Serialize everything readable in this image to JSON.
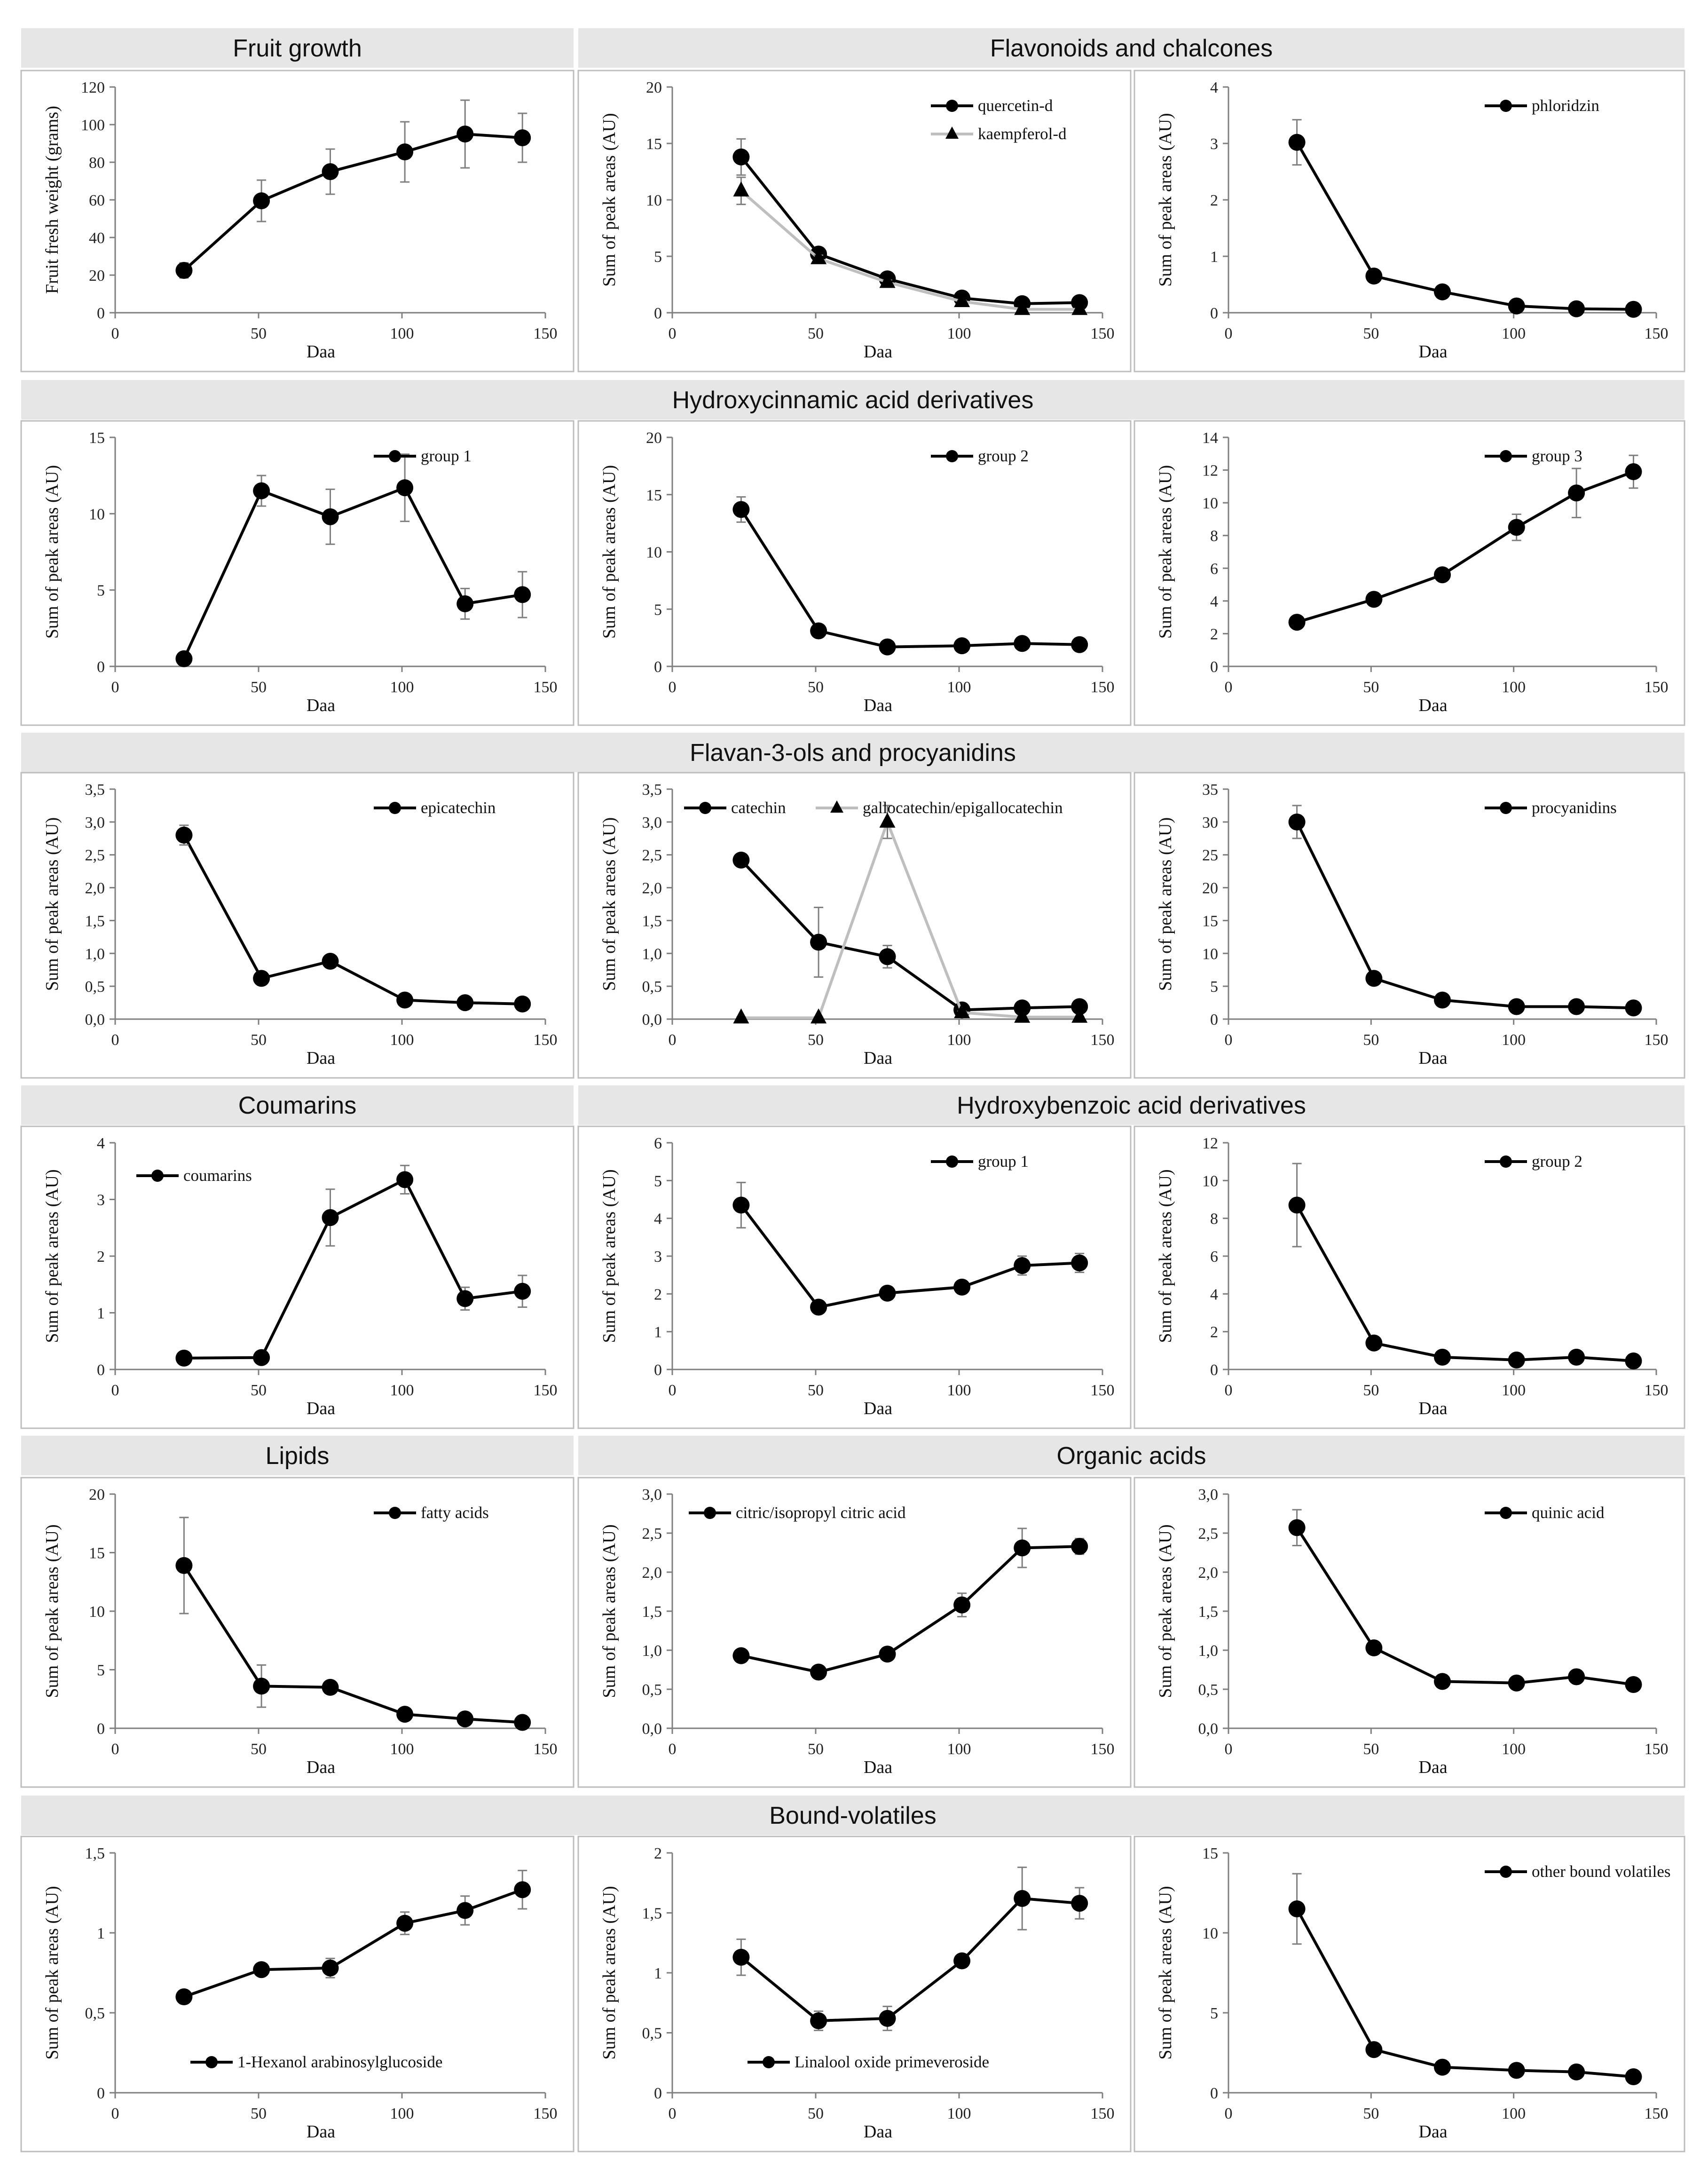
{
  "section_headers": [
    {
      "key": "fruit",
      "text": "Fruit growth"
    },
    {
      "key": "flav",
      "text": "Flavonoids and chalcones"
    },
    {
      "key": "hca",
      "text": "Hydroxycinnamic acid derivatives"
    },
    {
      "key": "flavan",
      "text": "Flavan-3-ols and procyanidins"
    },
    {
      "key": "coum",
      "text": "Coumarins"
    },
    {
      "key": "hba",
      "text": "Hydroxybenzoic acid derivatives"
    },
    {
      "key": "lip",
      "text": "Lipids"
    },
    {
      "key": "org",
      "text": "Organic acids"
    },
    {
      "key": "bound",
      "text": "Bound-volatiles"
    }
  ],
  "chart_data": [
    {
      "id": "fruit-growth",
      "type": "line",
      "xlabel": "Daa",
      "ylabel": "Fruit fresh weight (grams)",
      "xlim": [
        0,
        150
      ],
      "xticks": [
        "0",
        "50",
        "100",
        "150"
      ],
      "ylim": [
        0,
        120
      ],
      "yticks": [
        "0",
        "20",
        "40",
        "60",
        "80",
        "100",
        "120"
      ],
      "legend_position": "none",
      "series": [
        {
          "name": "",
          "marker": "circle",
          "color": "#000000",
          "x": [
            24,
            51,
            75,
            101,
            122,
            142
          ],
          "y": [
            22.5,
            59.5,
            75,
            85.5,
            95,
            93
          ],
          "err": [
            4,
            11,
            12,
            16,
            18,
            13
          ]
        }
      ]
    },
    {
      "id": "flavonoids-chalcones-1",
      "type": "line",
      "xlabel": "Daa",
      "ylabel": "Sum of peak areas (AU)",
      "xlim": [
        0,
        150
      ],
      "xticks": [
        "0",
        "50",
        "100",
        "150"
      ],
      "ylim": [
        0,
        20
      ],
      "yticks": [
        "0",
        "5",
        "10",
        "15",
        "20"
      ],
      "legend_position": "top-right",
      "series": [
        {
          "name": "quercetin-d",
          "marker": "circle",
          "color": "#000000",
          "x": [
            24,
            51,
            75,
            101,
            122,
            142
          ],
          "y": [
            13.8,
            5.2,
            3.0,
            1.3,
            0.8,
            0.9
          ],
          "err": [
            1.6,
            0.4,
            0.3,
            0.2,
            0.1,
            0.1
          ]
        },
        {
          "name": "kaempferol-d",
          "marker": "triangle",
          "color": "#bfbfbf",
          "x": [
            24,
            51,
            75,
            101,
            122,
            142
          ],
          "y": [
            10.8,
            4.8,
            2.7,
            1.0,
            0.3,
            0.3
          ],
          "err": [
            1.2,
            0.3,
            0.2,
            0.1,
            0.05,
            0.05
          ]
        }
      ]
    },
    {
      "id": "flavonoids-chalcones-2",
      "type": "line",
      "xlabel": "Daa",
      "ylabel": "Sum of peak areas (AU)",
      "xlim": [
        0,
        150
      ],
      "xticks": [
        "0",
        "50",
        "100",
        "150"
      ],
      "ylim": [
        0,
        4
      ],
      "yticks": [
        "0",
        "1",
        "2",
        "3",
        "4"
      ],
      "legend_position": "top-right",
      "series": [
        {
          "name": "phloridzin",
          "marker": "circle",
          "color": "#000000",
          "x": [
            24,
            51,
            75,
            101,
            122,
            142
          ],
          "y": [
            3.02,
            0.65,
            0.37,
            0.12,
            0.07,
            0.06
          ],
          "err": [
            0.4,
            0.05,
            0.04,
            0.02,
            0.01,
            0.01
          ]
        }
      ]
    },
    {
      "id": "hydroxycinnamic-group-1",
      "type": "line",
      "xlabel": "Daa",
      "ylabel": "Sum of peak areas (AU)",
      "xlim": [
        0,
        150
      ],
      "xticks": [
        "0",
        "50",
        "100",
        "150"
      ],
      "ylim": [
        0,
        15
      ],
      "yticks": [
        "0",
        "5",
        "10",
        "15"
      ],
      "legend_position": "top-right",
      "series": [
        {
          "name": "group 1",
          "marker": "circle",
          "color": "#000000",
          "x": [
            24,
            51,
            75,
            101,
            122,
            142
          ],
          "y": [
            0.5,
            11.5,
            9.8,
            11.7,
            4.1,
            4.7
          ],
          "err": [
            0.1,
            1.0,
            1.8,
            2.2,
            1.0,
            1.5
          ]
        }
      ]
    },
    {
      "id": "hydroxycinnamic-group-2",
      "type": "line",
      "xlabel": "Daa",
      "ylabel": "Sum of peak areas (AU)",
      "xlim": [
        0,
        150
      ],
      "xticks": [
        "0",
        "50",
        "100",
        "150"
      ],
      "ylim": [
        0,
        20
      ],
      "yticks": [
        "0",
        "5",
        "10",
        "15",
        "20"
      ],
      "legend_position": "top-right",
      "series": [
        {
          "name": "group 2",
          "marker": "circle",
          "color": "#000000",
          "x": [
            24,
            51,
            75,
            101,
            122,
            142
          ],
          "y": [
            13.7,
            3.1,
            1.7,
            1.8,
            2.0,
            1.9
          ],
          "err": [
            1.1,
            0.3,
            0.2,
            0.2,
            0.2,
            0.2
          ]
        }
      ]
    },
    {
      "id": "hydroxycinnamic-group-3",
      "type": "line",
      "xlabel": "Daa",
      "ylabel": "Sum of peak areas (AU)",
      "xlim": [
        0,
        150
      ],
      "xticks": [
        "0",
        "50",
        "100",
        "150"
      ],
      "ylim": [
        0,
        14
      ],
      "yticks": [
        "0",
        "2",
        "4",
        "6",
        "8",
        "10",
        "12",
        "14"
      ],
      "legend_position": "top-right",
      "series": [
        {
          "name": "group 3",
          "marker": "circle",
          "color": "#000000",
          "x": [
            24,
            51,
            75,
            101,
            122,
            142
          ],
          "y": [
            2.7,
            4.1,
            5.6,
            8.5,
            10.6,
            11.9
          ],
          "err": [
            0.1,
            0.3,
            0.3,
            0.8,
            1.5,
            1.0
          ]
        }
      ]
    },
    {
      "id": "flavan-epicatechin",
      "type": "line",
      "xlabel": "Daa",
      "ylabel": "Sum of peak areas (AU)",
      "xlim": [
        0,
        150
      ],
      "xticks": [
        "0",
        "50",
        "100",
        "150"
      ],
      "ylim": [
        0,
        3.5
      ],
      "yticks": [
        "0,0",
        "0,5",
        "1,0",
        "1,5",
        "2,0",
        "2,5",
        "3,0",
        "3,5"
      ],
      "legend_position": "top-right",
      "series": [
        {
          "name": "epicatechin",
          "marker": "circle",
          "color": "#000000",
          "x": [
            24,
            51,
            75,
            101,
            122,
            142
          ],
          "y": [
            2.8,
            0.62,
            0.88,
            0.29,
            0.25,
            0.23
          ],
          "err": [
            0.15,
            0.05,
            0.05,
            0.03,
            0.02,
            0.02
          ]
        }
      ]
    },
    {
      "id": "flavan-catechin",
      "type": "line",
      "xlabel": "Daa",
      "ylabel": "Sum of peak areas (AU)",
      "xlim": [
        0,
        150
      ],
      "xticks": [
        "0",
        "50",
        "100",
        "150"
      ],
      "ylim": [
        0,
        3.5
      ],
      "yticks": [
        "0,0",
        "0,5",
        "1,0",
        "1,5",
        "2,0",
        "2,5",
        "3,0",
        "3,5"
      ],
      "legend_position": "top",
      "series": [
        {
          "name": "catechin",
          "marker": "circle",
          "color": "#000000",
          "x": [
            24,
            51,
            75,
            101,
            122,
            142
          ],
          "y": [
            2.42,
            1.17,
            0.95,
            0.14,
            0.17,
            0.19
          ],
          "err": [
            0.08,
            0.53,
            0.17,
            0.05,
            0.03,
            0.03
          ]
        },
        {
          "name": "gallocatechin/epigallocatechin",
          "marker": "triangle",
          "color": "#bfbfbf",
          "x": [
            24,
            51,
            75,
            101,
            122,
            142
          ],
          "y": [
            0.02,
            0.02,
            3.0,
            0.1,
            0.03,
            0.03
          ],
          "err": [
            0.01,
            0.01,
            0.25,
            0.02,
            0.01,
            0.01
          ]
        }
      ]
    },
    {
      "id": "flavan-procyanidins",
      "type": "line",
      "xlabel": "Daa",
      "ylabel": "Sum of peak areas (AU)",
      "xlim": [
        0,
        150
      ],
      "xticks": [
        "0",
        "50",
        "100",
        "150"
      ],
      "ylim": [
        0,
        35
      ],
      "yticks": [
        "0",
        "5",
        "10",
        "15",
        "20",
        "25",
        "30",
        "35"
      ],
      "legend_position": "top-right",
      "series": [
        {
          "name": "procyanidins",
          "marker": "circle",
          "color": "#000000",
          "x": [
            24,
            51,
            75,
            101,
            122,
            142
          ],
          "y": [
            30.0,
            6.2,
            2.9,
            1.9,
            1.9,
            1.7
          ],
          "err": [
            2.5,
            0.5,
            0.3,
            0.2,
            0.2,
            0.2
          ]
        }
      ]
    },
    {
      "id": "coumarins",
      "type": "line",
      "xlabel": "Daa",
      "ylabel": "Sum of peak areas (AU)",
      "xlim": [
        0,
        150
      ],
      "xticks": [
        "0",
        "50",
        "100",
        "150"
      ],
      "ylim": [
        0,
        4
      ],
      "yticks": [
        "0",
        "1",
        "2",
        "3",
        "4"
      ],
      "legend_position": "top-left",
      "series": [
        {
          "name": "coumarins",
          "marker": "circle",
          "color": "#000000",
          "x": [
            24,
            51,
            75,
            101,
            122,
            142
          ],
          "y": [
            0.2,
            0.21,
            2.68,
            3.35,
            1.25,
            1.38
          ],
          "err": [
            0.03,
            0.03,
            0.5,
            0.25,
            0.2,
            0.28
          ]
        }
      ]
    },
    {
      "id": "hydroxybenzoic-group-1",
      "type": "line",
      "xlabel": "Daa",
      "ylabel": "Sum of peak areas (AU)",
      "xlim": [
        0,
        150
      ],
      "xticks": [
        "0",
        "50",
        "100",
        "150"
      ],
      "ylim": [
        0,
        6
      ],
      "yticks": [
        "0",
        "1",
        "2",
        "3",
        "4",
        "5",
        "6"
      ],
      "legend_position": "top-right",
      "series": [
        {
          "name": "group 1",
          "marker": "circle",
          "color": "#000000",
          "x": [
            24,
            51,
            75,
            101,
            122,
            142
          ],
          "y": [
            4.35,
            1.65,
            2.02,
            2.18,
            2.75,
            2.82
          ],
          "err": [
            0.6,
            0.05,
            0.05,
            0.08,
            0.25,
            0.25
          ]
        }
      ]
    },
    {
      "id": "hydroxybenzoic-group-2",
      "type": "line",
      "xlabel": "Daa",
      "ylabel": "Sum of peak areas (AU)",
      "xlim": [
        0,
        150
      ],
      "xticks": [
        "0",
        "50",
        "100",
        "150"
      ],
      "ylim": [
        0,
        12
      ],
      "yticks": [
        "0",
        "2",
        "4",
        "6",
        "8",
        "10",
        "12"
      ],
      "legend_position": "top-right",
      "series": [
        {
          "name": "group 2",
          "marker": "circle",
          "color": "#000000",
          "x": [
            24,
            51,
            75,
            101,
            122,
            142
          ],
          "y": [
            8.7,
            1.4,
            0.65,
            0.5,
            0.65,
            0.45
          ],
          "err": [
            2.2,
            0.1,
            0.05,
            0.05,
            0.05,
            0.05
          ]
        }
      ]
    },
    {
      "id": "lipids",
      "type": "line",
      "xlabel": "Daa",
      "ylabel": "Sum of peak areas (AU)",
      "xlim": [
        0,
        150
      ],
      "xticks": [
        "0",
        "50",
        "100",
        "150"
      ],
      "ylim": [
        0,
        20
      ],
      "yticks": [
        "0",
        "5",
        "10",
        "15",
        "20"
      ],
      "legend_position": "top-right",
      "series": [
        {
          "name": "fatty acids",
          "marker": "circle",
          "color": "#000000",
          "x": [
            24,
            51,
            75,
            101,
            122,
            142
          ],
          "y": [
            13.9,
            3.6,
            3.5,
            1.2,
            0.8,
            0.5
          ],
          "err": [
            4.1,
            1.8,
            0.2,
            0.1,
            0.1,
            0.1
          ]
        }
      ]
    },
    {
      "id": "organic-citric",
      "type": "line",
      "xlabel": "Daa",
      "ylabel": "Sum of peak areas (AU)",
      "xlim": [
        0,
        150
      ],
      "xticks": [
        "0",
        "50",
        "100",
        "150"
      ],
      "ylim": [
        0,
        3
      ],
      "yticks": [
        "0,0",
        "0,5",
        "1,0",
        "1,5",
        "2,0",
        "2,5",
        "3,0"
      ],
      "legend_position": "top",
      "series": [
        {
          "name": "citric/isopropyl citric acid",
          "marker": "circle",
          "color": "#000000",
          "x": [
            24,
            51,
            75,
            101,
            122,
            142
          ],
          "y": [
            0.93,
            0.72,
            0.95,
            1.58,
            2.31,
            2.33
          ],
          "err": [
            0.03,
            0.03,
            0.05,
            0.15,
            0.25,
            0.1
          ]
        }
      ]
    },
    {
      "id": "organic-quinic",
      "type": "line",
      "xlabel": "Daa",
      "ylabel": "Sum of peak areas (AU)",
      "xlim": [
        0,
        150
      ],
      "xticks": [
        "0",
        "50",
        "100",
        "150"
      ],
      "ylim": [
        0,
        3
      ],
      "yticks": [
        "0,0",
        "0,5",
        "1,0",
        "1,5",
        "2,0",
        "2,5",
        "3,0"
      ],
      "legend_position": "top-right",
      "series": [
        {
          "name": "quinic acid",
          "marker": "circle",
          "color": "#000000",
          "x": [
            24,
            51,
            75,
            101,
            122,
            142
          ],
          "y": [
            2.57,
            1.03,
            0.6,
            0.58,
            0.66,
            0.56
          ],
          "err": [
            0.23,
            0.03,
            0.03,
            0.03,
            0.08,
            0.03
          ]
        }
      ]
    },
    {
      "id": "bound-hexanol",
      "type": "line",
      "xlabel": "Daa",
      "ylabel": "Sum of peak areas (AU)",
      "xlim": [
        0,
        150
      ],
      "xticks": [
        "0",
        "50",
        "100",
        "150"
      ],
      "ylim": [
        0,
        1.5
      ],
      "yticks": [
        "0",
        "0,5",
        "1",
        "1,5"
      ],
      "legend_position": "bottom",
      "series": [
        {
          "name": "1-Hexanol arabinosylglucoside",
          "marker": "circle",
          "color": "#000000",
          "x": [
            24,
            51,
            75,
            101,
            122,
            142
          ],
          "y": [
            0.6,
            0.77,
            0.78,
            1.06,
            1.14,
            1.27
          ],
          "err": [
            0.02,
            0.03,
            0.06,
            0.07,
            0.09,
            0.12
          ]
        }
      ]
    },
    {
      "id": "bound-linalool",
      "type": "line",
      "xlabel": "Daa",
      "ylabel": "Sum of peak areas (AU)",
      "xlim": [
        0,
        150
      ],
      "xticks": [
        "0",
        "50",
        "100",
        "150"
      ],
      "ylim": [
        0,
        2
      ],
      "yticks": [
        "0",
        "0,5",
        "1",
        "1,5",
        "2"
      ],
      "legend_position": "bottom",
      "series": [
        {
          "name": "Linalool oxide primeveroside",
          "marker": "circle",
          "color": "#000000",
          "x": [
            24,
            51,
            75,
            101,
            122,
            142
          ],
          "y": [
            1.13,
            0.6,
            0.62,
            1.1,
            1.62,
            1.58
          ],
          "err": [
            0.15,
            0.08,
            0.1,
            0.04,
            0.26,
            0.13
          ]
        }
      ]
    },
    {
      "id": "bound-other",
      "type": "line",
      "xlabel": "Daa",
      "ylabel": "Sum of peak areas (AU)",
      "xlim": [
        0,
        150
      ],
      "xticks": [
        "0",
        "50",
        "100",
        "150"
      ],
      "ylim": [
        0,
        15
      ],
      "yticks": [
        "0",
        "5",
        "10",
        "15"
      ],
      "legend_position": "top-right",
      "series": [
        {
          "name": "other bound volatiles",
          "marker": "circle",
          "color": "#000000",
          "x": [
            24,
            51,
            75,
            101,
            122,
            142
          ],
          "y": [
            11.5,
            2.7,
            1.6,
            1.4,
            1.3,
            1.0
          ],
          "err": [
            2.2,
            0.1,
            0.1,
            0.1,
            0.1,
            0.1
          ]
        }
      ]
    }
  ]
}
